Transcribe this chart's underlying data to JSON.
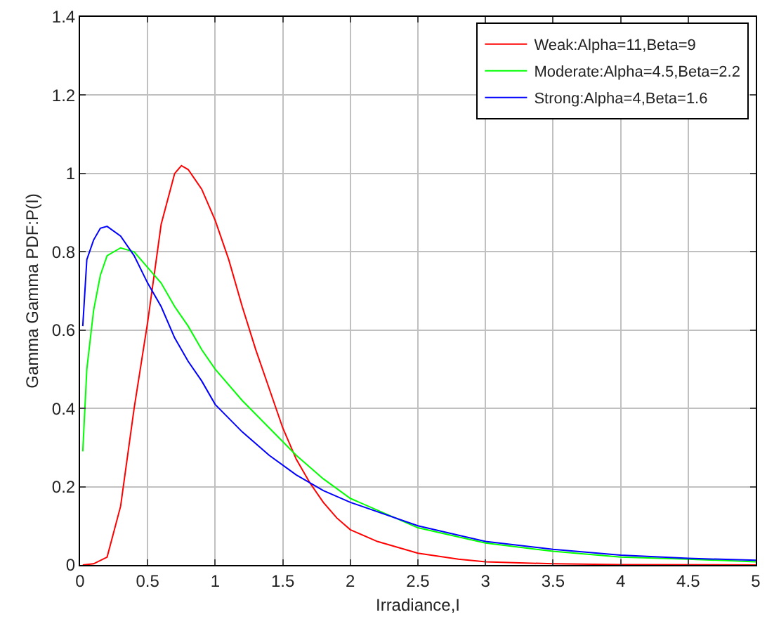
{
  "chart_data": {
    "type": "line",
    "xlabel": "Irradiance,I",
    "ylabel": "Gamma Gamma PDF:P(I)",
    "xlim": [
      0,
      5
    ],
    "ylim": [
      0,
      1.4
    ],
    "xticks": [
      0,
      0.5,
      1,
      1.5,
      2,
      2.5,
      3,
      3.5,
      4,
      4.5,
      5
    ],
    "yticks": [
      0,
      0.2,
      0.4,
      0.6,
      0.8,
      1,
      1.2,
      1.4
    ],
    "grid": true,
    "legend": "top right",
    "marker": "none",
    "line_style": "solid",
    "series": [
      {
        "name": "Weak:Alpha=11,Beta=9",
        "color": "#ff0000",
        "x": [
          0.02,
          0.1,
          0.2,
          0.3,
          0.4,
          0.5,
          0.6,
          0.7,
          0.75,
          0.8,
          0.9,
          1.0,
          1.1,
          1.2,
          1.3,
          1.4,
          1.5,
          1.6,
          1.7,
          1.8,
          1.9,
          2.0,
          2.2,
          2.5,
          2.8,
          3.0,
          3.5,
          4.0,
          5.0
        ],
        "values": [
          0,
          0.003,
          0.02,
          0.15,
          0.4,
          0.62,
          0.87,
          1.0,
          1.02,
          1.01,
          0.96,
          0.88,
          0.78,
          0.66,
          0.55,
          0.45,
          0.35,
          0.27,
          0.21,
          0.16,
          0.12,
          0.09,
          0.06,
          0.03,
          0.015,
          0.008,
          0.003,
          0.001,
          0
        ]
      },
      {
        "name": "Moderate:Alpha=4.5,Beta=2.2",
        "color": "#00ff00",
        "x": [
          0.02,
          0.05,
          0.1,
          0.15,
          0.2,
          0.3,
          0.4,
          0.5,
          0.6,
          0.7,
          0.8,
          0.9,
          1.0,
          1.2,
          1.4,
          1.6,
          1.8,
          2.0,
          2.5,
          3.0,
          3.5,
          4.0,
          4.5,
          5.0
        ],
        "values": [
          0.29,
          0.5,
          0.65,
          0.74,
          0.79,
          0.81,
          0.8,
          0.76,
          0.72,
          0.66,
          0.61,
          0.55,
          0.5,
          0.42,
          0.35,
          0.28,
          0.22,
          0.17,
          0.095,
          0.056,
          0.035,
          0.02,
          0.015,
          0.008
        ]
      },
      {
        "name": "Strong:Alpha=4,Beta=1.6",
        "color": "#0000ff",
        "x": [
          0.02,
          0.05,
          0.1,
          0.15,
          0.2,
          0.3,
          0.4,
          0.5,
          0.6,
          0.7,
          0.8,
          0.9,
          1.0,
          1.2,
          1.4,
          1.6,
          1.8,
          2.0,
          2.5,
          3.0,
          3.5,
          4.0,
          4.5,
          5.0
        ],
        "values": [
          0.61,
          0.78,
          0.83,
          0.86,
          0.865,
          0.84,
          0.79,
          0.72,
          0.66,
          0.58,
          0.52,
          0.47,
          0.41,
          0.34,
          0.28,
          0.23,
          0.19,
          0.16,
          0.1,
          0.06,
          0.04,
          0.025,
          0.017,
          0.012
        ]
      }
    ]
  }
}
